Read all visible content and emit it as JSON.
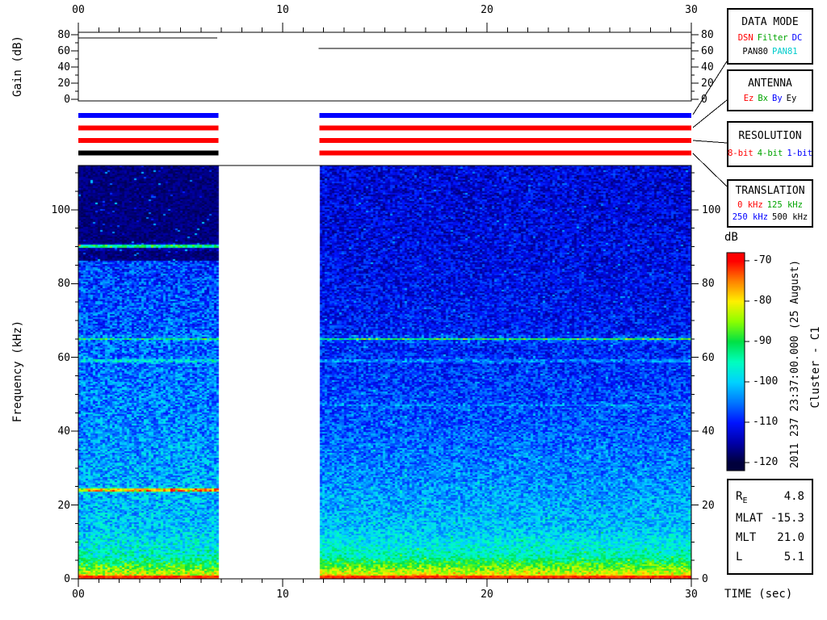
{
  "panels": {
    "data_mode": {
      "title": "DATA MODE",
      "rows": [
        [
          {
            "label": "DSN",
            "color": "#ff0000"
          },
          {
            "label": "Filter",
            "color": "#00a400"
          },
          {
            "label": "DC",
            "color": "#0000ff"
          }
        ],
        [
          {
            "label": "PAN80",
            "color": "#000000"
          },
          {
            "label": "PAN81",
            "color": "#00cccc"
          }
        ]
      ]
    },
    "antenna": {
      "title": "ANTENNA",
      "rows": [
        [
          {
            "label": "Ez",
            "color": "#ff0000"
          },
          {
            "label": "Bx",
            "color": "#00a400"
          },
          {
            "label": "By",
            "color": "#0000ff"
          },
          {
            "label": "Ey",
            "color": "#000000"
          }
        ]
      ]
    },
    "resolution": {
      "title": "RESOLUTION",
      "rows": [
        [
          {
            "label": "8-bit",
            "color": "#ff0000"
          },
          {
            "label": "4-bit",
            "color": "#00a400"
          },
          {
            "label": "1-bit",
            "color": "#0000ff"
          }
        ]
      ]
    },
    "translation": {
      "title": "TRANSLATION",
      "rows": [
        [
          {
            "label": "0 kHz",
            "color": "#ff0000"
          },
          {
            "label": "125 kHz",
            "color": "#00a400"
          }
        ],
        [
          {
            "label": "250 kHz",
            "color": "#0000ff"
          },
          {
            "label": "500 kHz",
            "color": "#000000"
          }
        ]
      ]
    },
    "colorbar": {
      "unit": "dB",
      "ticks": [
        "-70",
        "-80",
        "-90",
        "-100",
        "-110",
        "-120"
      ]
    },
    "side_text": {
      "timestamp": "2011 237 23:37:00.000 (25 August)",
      "spacecraft": "Cluster - C1"
    },
    "ephemeris": {
      "rows": [
        {
          "label": "R",
          "sub": "E",
          "value": "4.8"
        },
        {
          "label": "MLAT",
          "value": "-15.3"
        },
        {
          "label": "MLT",
          "value": "21.0"
        },
        {
          "label": "L",
          "value": "5.1"
        }
      ]
    }
  },
  "chart_data": [
    {
      "type": "line",
      "ylabel": "Gain (dB)",
      "xlim": [
        0,
        30
      ],
      "ylim": [
        0,
        83
      ],
      "xticks": [
        0,
        10,
        20,
        30
      ],
      "xtick_labels": [
        "00",
        "10",
        "20",
        "30"
      ],
      "yticks": [
        0,
        20,
        40,
        60,
        80
      ],
      "ytick_labels": [
        "0",
        "20",
        "40",
        "60",
        "80"
      ],
      "series": [
        {
          "name": "gain-segment-1",
          "x": [
            0,
            6.8
          ],
          "y": [
            76,
            76
          ]
        },
        {
          "name": "gain-segment-2",
          "x": [
            11.75,
            30
          ],
          "y": [
            63,
            63
          ]
        }
      ]
    },
    {
      "type": "heatmap",
      "xlabel": "TIME (sec)",
      "ylabel": "Frequency (kHz)",
      "xlim": [
        0,
        30
      ],
      "ylim": [
        0,
        112
      ],
      "xticks": [
        0,
        10,
        20,
        30
      ],
      "xtick_labels": [
        "00",
        "10",
        "20",
        "30"
      ],
      "yticks": [
        0,
        20,
        40,
        60,
        80,
        100
      ],
      "ytick_labels": [
        "0",
        "20",
        "40",
        "60",
        "80",
        "100"
      ],
      "colorbar_db_range": [
        -120,
        -70
      ],
      "segments": [
        {
          "t0": 0,
          "t1": 6.85,
          "dark_above_khz": 86,
          "lines_khz": [
            {
              "f": 90,
              "strength": 0.5
            },
            {
              "f": 65,
              "strength": 0.3
            },
            {
              "f": 59,
              "strength": 0.14
            },
            {
              "f": 24,
              "strength": 0.5
            }
          ]
        },
        {
          "t0": 11.8,
          "t1": 30,
          "dark_above_khz": 112,
          "lines_khz": [
            {
              "f": 65,
              "strength": 0.4
            },
            {
              "f": 59,
              "strength": 0.1
            },
            {
              "f": 47,
              "strength": 0.08
            }
          ]
        }
      ],
      "status_bars": [
        {
          "name": "data-mode-bar",
          "segment_colors": [
            "#0000ff",
            "#0000ff"
          ]
        },
        {
          "name": "antenna-bar",
          "segment_colors": [
            "#ff0000",
            "#ff0000"
          ]
        },
        {
          "name": "resolution-bar",
          "segment_colors": [
            "#ff0000",
            "#ff0000"
          ]
        },
        {
          "name": "translation-bar",
          "segment_colors": [
            "#000000",
            "#ff0000"
          ]
        }
      ],
      "colormap_stops": [
        [
          0.0,
          [
            0,
            0,
            60
          ]
        ],
        [
          0.1,
          [
            0,
            0,
            170
          ]
        ],
        [
          0.2,
          [
            0,
            20,
            255
          ]
        ],
        [
          0.3,
          [
            0,
            120,
            255
          ]
        ],
        [
          0.4,
          [
            0,
            210,
            255
          ]
        ],
        [
          0.5,
          [
            0,
            255,
            190
          ]
        ],
        [
          0.6,
          [
            0,
            225,
            70
          ]
        ],
        [
          0.7,
          [
            140,
            255,
            0
          ]
        ],
        [
          0.8,
          [
            255,
            240,
            0
          ]
        ],
        [
          0.9,
          [
            255,
            130,
            0
          ]
        ],
        [
          1.0,
          [
            255,
            0,
            0
          ]
        ]
      ]
    }
  ]
}
